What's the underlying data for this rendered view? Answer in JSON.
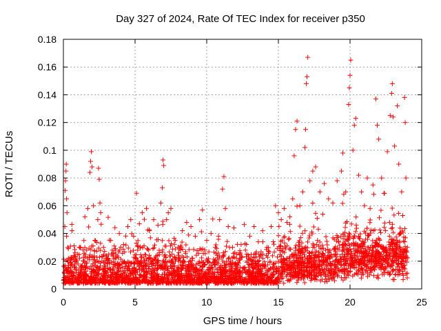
{
  "chart_data": {
    "type": "scatter",
    "title": "Day 327 of 2024, Rate Of TEC Index for receiver p350",
    "xlabel": "GPS time / hours",
    "ylabel": "ROTI / TECUs",
    "xlim": [
      0,
      25
    ],
    "ylim": [
      0,
      0.18
    ],
    "x_ticks": [
      "0",
      "5",
      "10",
      "15",
      "20",
      "25"
    ],
    "y_ticks": [
      "0",
      "0.02",
      "0.04",
      "0.06",
      "0.08",
      "0.1",
      "0.12",
      "0.14",
      "0.16",
      "0.18"
    ],
    "grid": true,
    "marker": "+",
    "series_color": "#ff0000",
    "series": [
      {
        "points": [
          [
            0.05,
            0.012
          ],
          [
            0.1,
            0.045
          ],
          [
            0.12,
            0.071
          ],
          [
            0.15,
            0.078
          ],
          [
            0.18,
            0.085
          ],
          [
            0.2,
            0.09
          ],
          [
            0.22,
            0.065
          ],
          [
            0.25,
            0.055
          ],
          [
            0.3,
            0.03
          ],
          [
            0.35,
            0.022
          ],
          [
            0.5,
            0.015
          ],
          [
            0.6,
            0.042
          ],
          [
            0.8,
            0.018
          ],
          [
            1.0,
            0.025
          ],
          [
            1.2,
            0.03
          ],
          [
            1.5,
            0.052
          ],
          [
            1.7,
            0.058
          ],
          [
            1.85,
            0.084
          ],
          [
            1.9,
            0.092
          ],
          [
            1.95,
            0.099
          ],
          [
            2.0,
            0.088
          ],
          [
            2.1,
            0.06
          ],
          [
            2.2,
            0.035
          ],
          [
            2.4,
            0.05
          ],
          [
            2.45,
            0.087
          ],
          [
            2.5,
            0.079
          ],
          [
            2.55,
            0.062
          ],
          [
            2.6,
            0.055
          ],
          [
            2.8,
            0.03
          ],
          [
            3.0,
            0.022
          ],
          [
            3.3,
            0.035
          ],
          [
            3.6,
            0.028
          ],
          [
            3.9,
            0.04
          ],
          [
            4.2,
            0.032
          ],
          [
            4.5,
            0.045
          ],
          [
            4.7,
            0.05
          ],
          [
            4.9,
            0.038
          ],
          [
            5.1,
            0.069
          ],
          [
            5.3,
            0.047
          ],
          [
            5.5,
            0.055
          ],
          [
            5.8,
            0.058
          ],
          [
            6.0,
            0.042
          ],
          [
            6.3,
            0.05
          ],
          [
            6.6,
            0.046
          ],
          [
            6.8,
            0.062
          ],
          [
            6.9,
            0.073
          ],
          [
            6.95,
            0.093
          ],
          [
            7.0,
            0.089
          ],
          [
            7.2,
            0.05
          ],
          [
            7.5,
            0.058
          ],
          [
            7.8,
            0.035
          ],
          [
            8.0,
            0.03
          ],
          [
            8.3,
            0.042
          ],
          [
            8.6,
            0.048
          ],
          [
            8.9,
            0.045
          ],
          [
            9.2,
            0.038
          ],
          [
            9.5,
            0.05
          ],
          [
            9.7,
            0.057
          ],
          [
            10.0,
            0.035
          ],
          [
            10.3,
            0.04
          ],
          [
            10.6,
            0.03
          ],
          [
            10.9,
            0.05
          ],
          [
            11.1,
            0.072
          ],
          [
            11.2,
            0.081
          ],
          [
            11.3,
            0.058
          ],
          [
            11.5,
            0.045
          ],
          [
            11.8,
            0.03
          ],
          [
            12.1,
            0.025
          ],
          [
            12.4,
            0.032
          ],
          [
            12.7,
            0.028
          ],
          [
            13.0,
            0.038
          ],
          [
            13.3,
            0.045
          ],
          [
            13.6,
            0.034
          ],
          [
            13.9,
            0.042
          ],
          [
            14.2,
            0.03
          ],
          [
            14.5,
            0.045
          ],
          [
            14.8,
            0.06
          ],
          [
            15.0,
            0.055
          ],
          [
            15.2,
            0.05
          ],
          [
            15.4,
            0.058
          ],
          [
            15.6,
            0.048
          ],
          [
            15.8,
            0.052
          ],
          [
            16.0,
            0.065
          ],
          [
            16.1,
            0.096
          ],
          [
            16.2,
            0.115
          ],
          [
            16.3,
            0.121
          ],
          [
            16.5,
            0.06
          ],
          [
            16.7,
            0.07
          ],
          [
            16.85,
            0.102
          ],
          [
            16.9,
            0.115
          ],
          [
            16.95,
            0.148
          ],
          [
            17.0,
            0.153
          ],
          [
            17.05,
            0.167
          ],
          [
            17.2,
            0.078
          ],
          [
            17.4,
            0.085
          ],
          [
            17.6,
            0.088
          ],
          [
            17.9,
            0.07
          ],
          [
            18.2,
            0.076
          ],
          [
            18.5,
            0.065
          ],
          [
            18.8,
            0.062
          ],
          [
            19.1,
            0.078
          ],
          [
            19.4,
            0.085
          ],
          [
            19.5,
            0.098
          ],
          [
            19.7,
            0.07
          ],
          [
            19.9,
            0.133
          ],
          [
            19.95,
            0.145
          ],
          [
            20.0,
            0.154
          ],
          [
            20.05,
            0.165
          ],
          [
            20.2,
            0.1
          ],
          [
            20.3,
            0.118
          ],
          [
            20.4,
            0.123
          ],
          [
            20.6,
            0.082
          ],
          [
            20.8,
            0.07
          ],
          [
            21.0,
            0.06
          ],
          [
            21.2,
            0.08
          ],
          [
            21.4,
            0.058
          ],
          [
            21.6,
            0.075
          ],
          [
            21.8,
            0.137
          ],
          [
            21.9,
            0.118
          ],
          [
            22.0,
            0.108
          ],
          [
            22.2,
            0.08
          ],
          [
            22.4,
            0.069
          ],
          [
            22.6,
            0.099
          ],
          [
            22.8,
            0.125
          ],
          [
            22.9,
            0.141
          ],
          [
            22.95,
            0.148
          ],
          [
            23.0,
            0.124
          ],
          [
            23.1,
            0.103
          ],
          [
            23.3,
            0.132
          ],
          [
            23.4,
            0.09
          ],
          [
            23.6,
            0.07
          ],
          [
            23.8,
            0.138
          ],
          [
            23.85,
            0.12
          ],
          [
            23.9,
            0.08
          ],
          [
            24.0,
            0.03
          ]
        ]
      }
    ]
  }
}
